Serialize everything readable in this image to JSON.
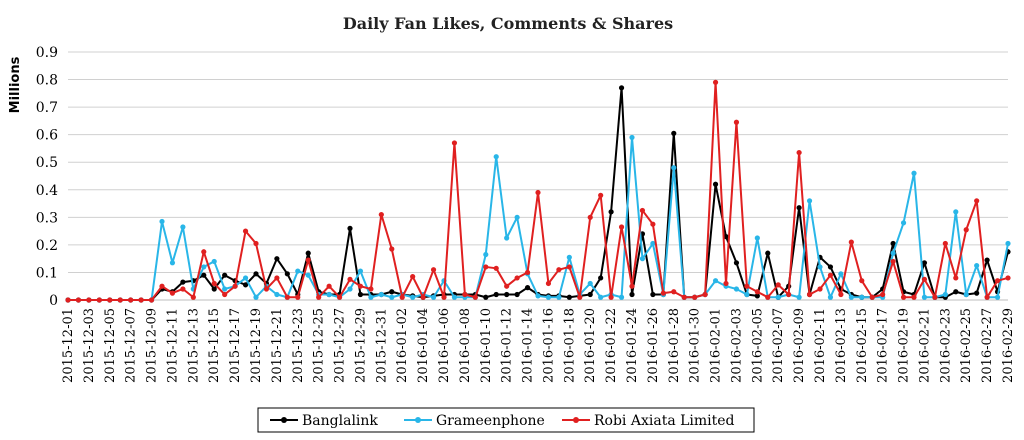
{
  "chart_data": {
    "type": "line",
    "title": "Daily Fan Likes, Comments & Shares",
    "xlabel": "",
    "ylabel": "Millions",
    "ylim": [
      0,
      0.9
    ],
    "yticks": [
      "0",
      "0.1",
      "0.2",
      "0.3",
      "0.4",
      "0.5",
      "0.6",
      "0.7",
      "0.8",
      "0.9"
    ],
    "grid": "horizontal",
    "legend_position": "bottom",
    "x": [
      "2015-12-01",
      "2015-12-02",
      "2015-12-03",
      "2015-12-04",
      "2015-12-05",
      "2015-12-06",
      "2015-12-07",
      "2015-12-08",
      "2015-12-09",
      "2015-12-10",
      "2015-12-11",
      "2015-12-12",
      "2015-12-13",
      "2015-12-14",
      "2015-12-15",
      "2015-12-16",
      "2015-12-17",
      "2015-12-18",
      "2015-12-19",
      "2015-12-20",
      "2015-12-21",
      "2015-12-22",
      "2015-12-23",
      "2015-12-24",
      "2015-12-25",
      "2015-12-26",
      "2015-12-27",
      "2015-12-28",
      "2015-12-29",
      "2015-12-30",
      "2015-12-31",
      "2016-01-01",
      "2016-01-02",
      "2016-01-03",
      "2016-01-04",
      "2016-01-05",
      "2016-01-06",
      "2016-01-07",
      "2016-01-08",
      "2016-01-09",
      "2016-01-10",
      "2016-01-11",
      "2016-01-12",
      "2016-01-13",
      "2016-01-14",
      "2016-01-15",
      "2016-01-16",
      "2016-01-17",
      "2016-01-18",
      "2016-01-19",
      "2016-01-20",
      "2016-01-21",
      "2016-01-22",
      "2016-01-23",
      "2016-01-24",
      "2016-01-25",
      "2016-01-26",
      "2016-01-27",
      "2016-01-28",
      "2016-01-29",
      "2016-01-30",
      "2016-01-31",
      "2016-02-01",
      "2016-02-02",
      "2016-02-03",
      "2016-02-04",
      "2016-02-05",
      "2016-02-06",
      "2016-02-07",
      "2016-02-08",
      "2016-02-09",
      "2016-02-10",
      "2016-02-11",
      "2016-02-12",
      "2016-02-13",
      "2016-02-14",
      "2016-02-15",
      "2016-02-16",
      "2016-02-17",
      "2016-02-18",
      "2016-02-19",
      "2016-02-20",
      "2016-02-21",
      "2016-02-22",
      "2016-02-23",
      "2016-02-24",
      "2016-02-25",
      "2016-02-26",
      "2016-02-27",
      "2016-02-28",
      "2016-02-29"
    ],
    "series": [
      {
        "name": "Banglalink",
        "color": "#000000",
        "values": [
          0,
          0,
          0,
          0,
          0,
          0,
          0,
          0,
          0,
          0.04,
          0.03,
          0.065,
          0.07,
          0.09,
          0.04,
          0.09,
          0.07,
          0.055,
          0.095,
          0.06,
          0.15,
          0.095,
          0.02,
          0.17,
          0.03,
          0.02,
          0.02,
          0.26,
          0.02,
          0.02,
          0.02,
          0.03,
          0.02,
          0.015,
          0.01,
          0.015,
          0.02,
          0.02,
          0.02,
          0.02,
          0.01,
          0.02,
          0.02,
          0.02,
          0.045,
          0.02,
          0.015,
          0.015,
          0.01,
          0.015,
          0.02,
          0.08,
          0.32,
          0.77,
          0.02,
          0.24,
          0.02,
          0.02,
          0.605,
          0.01,
          0.01,
          0.02,
          0.42,
          0.23,
          0.135,
          0.02,
          0.015,
          0.17,
          0.01,
          0.05,
          0.335,
          0.02,
          0.155,
          0.12,
          0.04,
          0.02,
          0.01,
          0.01,
          0.04,
          0.205,
          0.03,
          0.02,
          0.135,
          0.01,
          0.01,
          0.03,
          0.02,
          0.025,
          0.145,
          0.03,
          0.175
        ]
      },
      {
        "name": "Grameenphone",
        "color": "#29b6e8",
        "values": [
          0,
          0,
          0,
          0,
          0,
          0,
          0,
          0,
          0,
          0.285,
          0.135,
          0.265,
          0.04,
          0.12,
          0.14,
          0.04,
          0.05,
          0.08,
          0.01,
          0.05,
          0.02,
          0.01,
          0.105,
          0.09,
          0.02,
          0.02,
          0.01,
          0.04,
          0.105,
          0.01,
          0.02,
          0.01,
          0.02,
          0.01,
          0.02,
          0.01,
          0.07,
          0.01,
          0.01,
          0.01,
          0.165,
          0.52,
          0.225,
          0.3,
          0.095,
          0.015,
          0.01,
          0.01,
          0.155,
          0.02,
          0.06,
          0.01,
          0.02,
          0.01,
          0.59,
          0.15,
          0.205,
          0.02,
          0.48,
          0.01,
          0.01,
          0.02,
          0.07,
          0.05,
          0.04,
          0.02,
          0.225,
          0.01,
          0.01,
          0.02,
          0.01,
          0.36,
          0.12,
          0.01,
          0.095,
          0.01,
          0.01,
          0.01,
          0.01,
          0.17,
          0.28,
          0.46,
          0.01,
          0.01,
          0.02,
          0.32,
          0.02,
          0.125,
          0.01,
          0.01,
          0.205
        ]
      },
      {
        "name": "Robi Axiata Limited",
        "color": "#e02020",
        "values": [
          0,
          0,
          0,
          0,
          0,
          0,
          0,
          0,
          0,
          0.05,
          0.025,
          0.04,
          0.01,
          0.175,
          0.06,
          0.02,
          0.05,
          0.25,
          0.205,
          0.04,
          0.08,
          0.01,
          0.01,
          0.145,
          0.01,
          0.05,
          0.01,
          0.075,
          0.05,
          0.04,
          0.31,
          0.185,
          0.01,
          0.085,
          0.01,
          0.11,
          0.01,
          0.57,
          0.02,
          0.01,
          0.12,
          0.115,
          0.05,
          0.08,
          0.1,
          0.39,
          0.06,
          0.11,
          0.12,
          0.01,
          0.3,
          0.38,
          0.01,
          0.265,
          0.05,
          0.325,
          0.275,
          0.025,
          0.03,
          0.01,
          0.01,
          0.02,
          0.79,
          0.06,
          0.645,
          0.05,
          0.03,
          0.01,
          0.055,
          0.02,
          0.535,
          0.02,
          0.04,
          0.09,
          0.02,
          0.21,
          0.07,
          0.01,
          0.02,
          0.14,
          0.01,
          0.01,
          0.075,
          0.01,
          0.205,
          0.08,
          0.255,
          0.36,
          0.01,
          0.07,
          0.08
        ]
      }
    ]
  }
}
